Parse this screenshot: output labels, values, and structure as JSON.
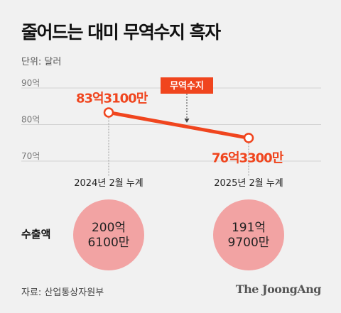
{
  "header": {
    "title": "줄어드는 대미 무역수지 흑자",
    "unit": "단위: 달러"
  },
  "chart_data": {
    "type": "line",
    "title": "줄어드는 대미 무역수지 흑자",
    "yticks": [
      "90억",
      "80억",
      "70억"
    ],
    "ylim": [
      70,
      90
    ],
    "categories": [
      "2024년 2월 누계",
      "2025년 2월 누계"
    ],
    "series": [
      {
        "name": "무역수지",
        "values": [
          83.31,
          76.33
        ],
        "labels": [
          "83억3100만",
          "76억3300만"
        ]
      }
    ],
    "grid": true,
    "accent_color": "#f0451e",
    "exports": {
      "label": "수출액",
      "values": [
        "200억\n6100만",
        "191억\n9700만"
      ],
      "bubble_color": "#f2a3a3"
    }
  },
  "footer": {
    "source": "자료: 산업통상자원부",
    "brand": "The JoongAng"
  }
}
